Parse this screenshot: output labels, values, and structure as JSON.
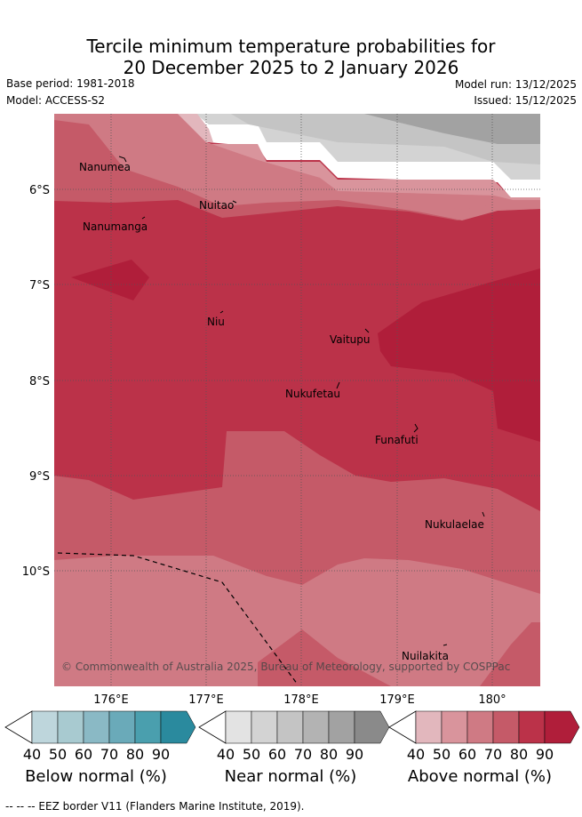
{
  "title": {
    "line1": "Tercile minimum temperature probabilities for",
    "line2": "20 December 2025 to 2 January 2026"
  },
  "meta": {
    "base_period": "Base period: 1981-2018",
    "model": "Model: ACCESS-S2",
    "model_run": "Model run: 13/12/2025",
    "issued": "Issued: 15/12/2025"
  },
  "axes": {
    "lon_ticks": [
      "176°E",
      "177°E",
      "178°E",
      "179°E",
      "180°"
    ],
    "lat_ticks": [
      "6°S",
      "7°S",
      "8°S",
      "9°S",
      "10°S"
    ]
  },
  "places": [
    "Nanumea",
    "Nuitao",
    "Nanumanga",
    "Niu",
    "Vaitupu",
    "Nukufetau",
    "Funafuti",
    "Nukulaelae",
    "Nuilakita"
  ],
  "copyright": "© Commonwealth of Australia 2025, Bureau of Meteorology, supported by COSPPac",
  "colorbars": [
    {
      "label": "Below normal (%)",
      "ticks": [
        "40",
        "50",
        "60",
        "70",
        "80",
        "90"
      ],
      "colors": [
        "#bed6dc",
        "#a8cad0",
        "#8ab9c5",
        "#6aaab9",
        "#4a9fae",
        "#2a8a9e"
      ]
    },
    {
      "label": "Near normal (%)",
      "ticks": [
        "40",
        "50",
        "60",
        "70",
        "80",
        "90"
      ],
      "colors": [
        "#e3e3e3",
        "#d3d3d3",
        "#c4c4c4",
        "#b3b3b3",
        "#a2a2a2",
        "#8a8a8a"
      ]
    },
    {
      "label": "Above normal (%)",
      "ticks": [
        "40",
        "50",
        "60",
        "70",
        "80",
        "90"
      ],
      "colors": [
        "#e2b7bd",
        "#d9949c",
        "#cf7a84",
        "#c55a68",
        "#bb3249",
        "#b01e3a"
      ]
    }
  ],
  "footer": "--  --  -- EEZ border V11 (Flanders Marine Institute, 2019)."
}
